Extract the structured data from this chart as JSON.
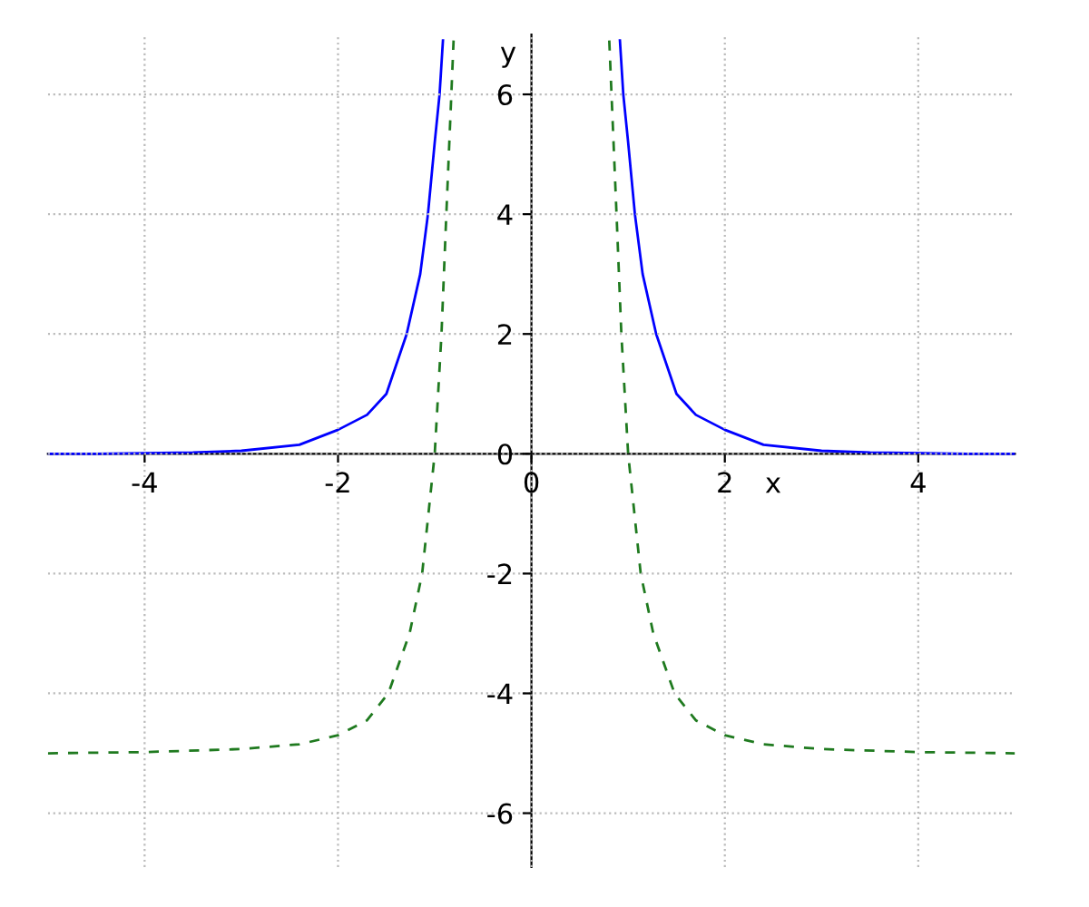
{
  "chart_data": {
    "type": "line",
    "xlabel": "x",
    "ylabel": "y",
    "xlim": [
      -5,
      5
    ],
    "ylim": [
      -6.9,
      7
    ],
    "xticks": [
      -4,
      -2,
      0,
      2,
      4
    ],
    "yticks": [
      -6,
      -4,
      -2,
      0,
      2,
      4,
      6
    ],
    "grid": true,
    "legend": false,
    "series": [
      {
        "color": "#0000ff",
        "line_style": "solid",
        "x": [
          -5,
          -4.5,
          -3.5,
          -3.0,
          -2.4,
          -2.0,
          -1.7,
          -1.5,
          -1.29,
          -1.15,
          -1.07,
          -1.0,
          -0.95,
          -0.915,
          null,
          0.915,
          0.95,
          1.0,
          1.07,
          1.15,
          1.29,
          1.5,
          1.7,
          2.0,
          2.4,
          3.0,
          3.5,
          4.5,
          5
        ],
        "values": [
          0,
          0,
          0.02,
          0.05,
          0.15,
          0.4,
          0.65,
          1,
          2,
          3,
          4,
          5.2,
          6,
          6.9,
          null,
          6.9,
          6,
          5.2,
          4,
          3,
          2,
          1,
          0.65,
          0.4,
          0.15,
          0.05,
          0.02,
          0,
          0
        ]
      },
      {
        "color": "#1f7a1f",
        "line_style": "dashed",
        "x": [
          -5,
          -4,
          -3,
          -2.4,
          -2.0,
          -1.7,
          -1.48,
          -1.26,
          -1.13,
          -1.0,
          -0.93,
          -0.88,
          -0.805,
          null,
          0.805,
          0.88,
          0.93,
          1.0,
          1.13,
          1.26,
          1.48,
          1.7,
          2.0,
          2.4,
          3,
          4,
          5
        ],
        "values": [
          -5,
          -4.98,
          -4.93,
          -4.85,
          -4.7,
          -4.45,
          -4,
          -3,
          -2,
          0,
          2,
          4,
          6.9,
          null,
          6.9,
          4,
          2,
          0,
          -2,
          -3,
          -4,
          -4.45,
          -4.7,
          -4.85,
          -4.93,
          -4.98,
          -5
        ]
      }
    ]
  }
}
